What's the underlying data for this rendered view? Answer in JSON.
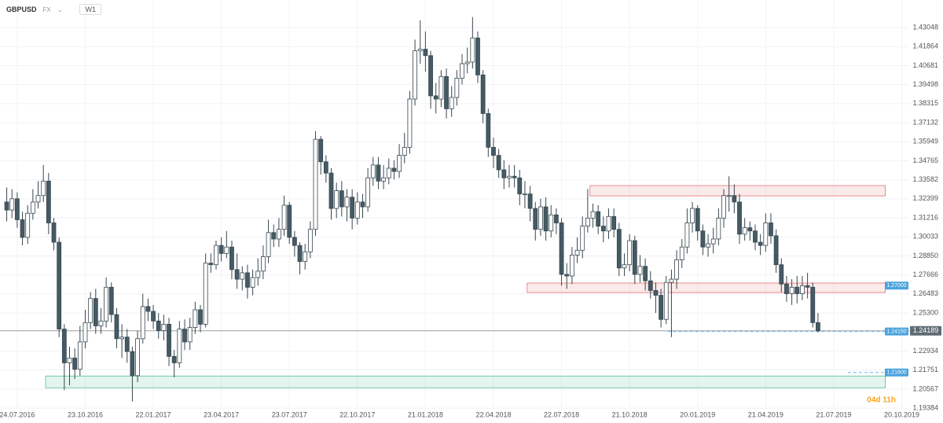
{
  "chart_data": {
    "type": "candlestick",
    "title": "GBPUSD",
    "market": "FX",
    "timeframe": "W1",
    "countdown": "04d 11h",
    "x": [
      "10.07.2016",
      "17.07.2016",
      "24.07.2016",
      "31.07.2016",
      "07.08.2016",
      "14.08.2016",
      "21.08.2016",
      "28.08.2016",
      "04.09.2016",
      "11.09.2016",
      "18.09.2016",
      "25.09.2016",
      "02.10.2016",
      "09.10.2016",
      "16.10.2016",
      "23.10.2016",
      "30.10.2016",
      "06.11.2016",
      "13.11.2016",
      "20.11.2016",
      "27.11.2016",
      "04.12.2016",
      "11.12.2016",
      "18.12.2016",
      "25.12.2016",
      "01.01.2017",
      "08.01.2017",
      "15.01.2017",
      "22.01.2017",
      "29.01.2017",
      "05.02.2017",
      "12.02.2017",
      "19.02.2017",
      "26.02.2017",
      "05.03.2017",
      "12.03.2017",
      "19.03.2017",
      "26.03.2017",
      "02.04.2017",
      "09.04.2017",
      "16.04.2017",
      "23.04.2017",
      "30.04.2017",
      "07.05.2017",
      "14.05.2017",
      "21.05.2017",
      "28.05.2017",
      "04.06.2017",
      "11.06.2017",
      "18.06.2017",
      "25.06.2017",
      "02.07.2017",
      "09.07.2017",
      "16.07.2017",
      "23.07.2017",
      "30.07.2017",
      "06.08.2017",
      "13.08.2017",
      "20.08.2017",
      "27.08.2017",
      "03.09.2017",
      "10.09.2017",
      "17.09.2017",
      "24.09.2017",
      "01.10.2017",
      "08.10.2017",
      "15.10.2017",
      "22.10.2017",
      "29.10.2017",
      "05.11.2017",
      "12.11.2017",
      "19.11.2017",
      "26.11.2017",
      "03.12.2017",
      "10.12.2017",
      "17.12.2017",
      "24.12.2017",
      "31.12.2017",
      "07.01.2018",
      "14.01.2018",
      "21.01.2018",
      "28.01.2018",
      "04.02.2018",
      "11.02.2018",
      "18.02.2018",
      "25.02.2018",
      "04.03.2018",
      "11.03.2018",
      "18.03.2018",
      "25.03.2018",
      "01.04.2018",
      "08.04.2018",
      "15.04.2018",
      "22.04.2018",
      "29.04.2018",
      "06.05.2018",
      "13.05.2018",
      "20.05.2018",
      "27.05.2018",
      "03.06.2018",
      "10.06.2018",
      "17.06.2018",
      "24.06.2018",
      "01.07.2018",
      "08.07.2018",
      "15.07.2018",
      "22.07.2018",
      "29.07.2018",
      "05.08.2018",
      "12.08.2018",
      "19.08.2018",
      "26.08.2018",
      "02.09.2018",
      "09.09.2018",
      "16.09.2018",
      "23.09.2018",
      "30.09.2018",
      "07.10.2018",
      "14.10.2018",
      "21.10.2018",
      "28.10.2018",
      "04.11.2018",
      "11.11.2018",
      "18.11.2018",
      "25.11.2018",
      "02.12.2018",
      "09.12.2018",
      "16.12.2018",
      "23.12.2018",
      "30.12.2018",
      "06.01.2019",
      "13.01.2019",
      "20.01.2019",
      "27.01.2019",
      "03.02.2019",
      "10.02.2019",
      "17.02.2019",
      "24.02.2019",
      "03.03.2019",
      "10.03.2019",
      "17.03.2019",
      "24.03.2019",
      "31.03.2019",
      "07.04.2019",
      "14.04.2019",
      "21.04.2019",
      "28.04.2019",
      "05.05.2019",
      "12.05.2019",
      "19.05.2019",
      "26.05.2019",
      "02.06.2019",
      "09.06.2019",
      "16.06.2019",
      "23.06.2019",
      "30.06.2019"
    ],
    "open": [
      1.322,
      1.317,
      1.324,
      1.311,
      1.3,
      1.315,
      1.322,
      1.326,
      1.335,
      1.309,
      1.297,
      1.243,
      1.222,
      1.225,
      1.218,
      1.235,
      1.247,
      1.262,
      1.245,
      1.248,
      1.269,
      1.252,
      1.237,
      1.238,
      1.229,
      1.214,
      1.237,
      1.257,
      1.254,
      1.248,
      1.242,
      1.246,
      1.226,
      1.222,
      1.243,
      1.235,
      1.244,
      1.255,
      1.246,
      1.284,
      1.283,
      1.295,
      1.29,
      1.294,
      1.28,
      1.274,
      1.278,
      1.269,
      1.275,
      1.279,
      1.288,
      1.303,
      1.299,
      1.305,
      1.32,
      1.3,
      1.295,
      1.285,
      1.291,
      1.305,
      1.361,
      1.347,
      1.34,
      1.318,
      1.329,
      1.319,
      1.325,
      1.312,
      1.322,
      1.319,
      1.337,
      1.345,
      1.335,
      1.337,
      1.343,
      1.341,
      1.351,
      1.356,
      1.386,
      1.416,
      1.417,
      1.413,
      1.388,
      1.386,
      1.4,
      1.38,
      1.387,
      1.399,
      1.408,
      1.409,
      1.424,
      1.401,
      1.377,
      1.356,
      1.351,
      1.342,
      1.337,
      1.338,
      1.337,
      1.327,
      1.327,
      1.318,
      1.305,
      1.319,
      1.304,
      1.314,
      1.309,
      1.277,
      1.276,
      1.289,
      1.292,
      1.307,
      1.312,
      1.316,
      1.307,
      1.304,
      1.313,
      1.305,
      1.281,
      1.283,
      1.298,
      1.277,
      1.282,
      1.273,
      1.267,
      1.264,
      1.249,
      1.272,
      1.274,
      1.286,
      1.294,
      1.309,
      1.318,
      1.304,
      1.294,
      1.296,
      1.299,
      1.312,
      1.326,
      1.326,
      1.322,
      1.302,
      1.306,
      1.304,
      1.297,
      1.295,
      1.309,
      1.301,
      1.283,
      1.271,
      1.265,
      1.269,
      1.265,
      1.27,
      1.269,
      1.247
    ],
    "high": [
      1.331,
      1.33,
      1.328,
      1.316,
      1.32,
      1.33,
      1.335,
      1.345,
      1.34,
      1.312,
      1.3,
      1.246,
      1.232,
      1.231,
      1.245,
      1.255,
      1.266,
      1.268,
      1.256,
      1.275,
      1.272,
      1.256,
      1.246,
      1.243,
      1.232,
      1.242,
      1.265,
      1.262,
      1.258,
      1.253,
      1.252,
      1.25,
      1.23,
      1.248,
      1.249,
      1.25,
      1.26,
      1.258,
      1.29,
      1.29,
      1.298,
      1.3,
      1.304,
      1.298,
      1.29,
      1.282,
      1.283,
      1.28,
      1.287,
      1.295,
      1.311,
      1.308,
      1.312,
      1.326,
      1.322,
      1.304,
      1.297,
      1.296,
      1.31,
      1.366,
      1.363,
      1.351,
      1.343,
      1.334,
      1.335,
      1.33,
      1.33,
      1.328,
      1.327,
      1.343,
      1.35,
      1.35,
      1.345,
      1.349,
      1.348,
      1.358,
      1.365,
      1.391,
      1.423,
      1.435,
      1.428,
      1.416,
      1.396,
      1.404,
      1.405,
      1.394,
      1.404,
      1.414,
      1.418,
      1.437,
      1.428,
      1.404,
      1.38,
      1.362,
      1.355,
      1.348,
      1.345,
      1.345,
      1.342,
      1.335,
      1.332,
      1.322,
      1.324,
      1.325,
      1.32,
      1.318,
      1.312,
      1.284,
      1.294,
      1.3,
      1.313,
      1.33,
      1.321,
      1.32,
      1.313,
      1.318,
      1.318,
      1.309,
      1.29,
      1.302,
      1.301,
      1.289,
      1.287,
      1.279,
      1.272,
      1.268,
      1.276,
      1.28,
      1.292,
      1.299,
      1.318,
      1.322,
      1.32,
      1.308,
      1.302,
      1.306,
      1.318,
      1.33,
      1.338,
      1.333,
      1.327,
      1.312,
      1.31,
      1.308,
      1.302,
      1.315,
      1.315,
      1.305,
      1.287,
      1.276,
      1.274,
      1.276,
      1.276,
      1.278,
      1.272,
      1.253
    ],
    "low": [
      1.31,
      1.312,
      1.306,
      1.295,
      1.296,
      1.311,
      1.318,
      1.322,
      1.302,
      1.292,
      1.238,
      1.205,
      1.208,
      1.212,
      1.214,
      1.231,
      1.243,
      1.24,
      1.24,
      1.244,
      1.247,
      1.231,
      1.225,
      1.222,
      1.198,
      1.21,
      1.234,
      1.248,
      1.243,
      1.237,
      1.236,
      1.22,
      1.213,
      1.219,
      1.23,
      1.23,
      1.24,
      1.241,
      1.244,
      1.278,
      1.28,
      1.285,
      1.287,
      1.274,
      1.268,
      1.267,
      1.262,
      1.264,
      1.27,
      1.274,
      1.284,
      1.294,
      1.294,
      1.301,
      1.296,
      1.288,
      1.277,
      1.28,
      1.287,
      1.301,
      1.339,
      1.334,
      1.311,
      1.312,
      1.313,
      1.31,
      1.305,
      1.308,
      1.312,
      1.316,
      1.332,
      1.33,
      1.33,
      1.333,
      1.336,
      1.337,
      1.346,
      1.352,
      1.382,
      1.408,
      1.403,
      1.38,
      1.377,
      1.381,
      1.374,
      1.375,
      1.382,
      1.395,
      1.402,
      1.405,
      1.396,
      1.371,
      1.35,
      1.343,
      1.337,
      1.33,
      1.331,
      1.331,
      1.32,
      1.318,
      1.31,
      1.298,
      1.301,
      1.298,
      1.3,
      1.302,
      1.27,
      1.268,
      1.271,
      1.284,
      1.287,
      1.303,
      1.306,
      1.302,
      1.297,
      1.299,
      1.3,
      1.276,
      1.276,
      1.279,
      1.271,
      1.272,
      1.267,
      1.262,
      1.253,
      1.244,
      1.246,
      1.238,
      1.268,
      1.281,
      1.29,
      1.303,
      1.298,
      1.289,
      1.288,
      1.29,
      1.295,
      1.306,
      1.316,
      1.315,
      1.296,
      1.298,
      1.298,
      1.292,
      1.289,
      1.291,
      1.296,
      1.278,
      1.266,
      1.26,
      1.258,
      1.259,
      1.261,
      1.262,
      1.244,
      1.241
    ],
    "close": [
      1.317,
      1.324,
      1.311,
      1.3,
      1.315,
      1.322,
      1.326,
      1.335,
      1.309,
      1.297,
      1.243,
      1.222,
      1.225,
      1.218,
      1.235,
      1.247,
      1.262,
      1.245,
      1.248,
      1.269,
      1.252,
      1.237,
      1.238,
      1.229,
      1.214,
      1.237,
      1.257,
      1.254,
      1.248,
      1.242,
      1.246,
      1.226,
      1.222,
      1.243,
      1.235,
      1.244,
      1.255,
      1.246,
      1.284,
      1.283,
      1.295,
      1.29,
      1.294,
      1.28,
      1.274,
      1.278,
      1.269,
      1.275,
      1.279,
      1.288,
      1.303,
      1.299,
      1.305,
      1.32,
      1.3,
      1.295,
      1.285,
      1.291,
      1.305,
      1.361,
      1.347,
      1.34,
      1.318,
      1.329,
      1.319,
      1.325,
      1.312,
      1.322,
      1.319,
      1.337,
      1.345,
      1.335,
      1.337,
      1.343,
      1.341,
      1.351,
      1.356,
      1.386,
      1.416,
      1.417,
      1.413,
      1.388,
      1.386,
      1.4,
      1.38,
      1.387,
      1.399,
      1.408,
      1.409,
      1.424,
      1.401,
      1.377,
      1.356,
      1.351,
      1.342,
      1.337,
      1.338,
      1.337,
      1.327,
      1.327,
      1.318,
      1.305,
      1.319,
      1.304,
      1.314,
      1.309,
      1.277,
      1.276,
      1.289,
      1.292,
      1.307,
      1.312,
      1.316,
      1.307,
      1.304,
      1.313,
      1.305,
      1.281,
      1.283,
      1.298,
      1.277,
      1.282,
      1.273,
      1.267,
      1.264,
      1.249,
      1.272,
      1.274,
      1.286,
      1.294,
      1.309,
      1.318,
      1.304,
      1.294,
      1.296,
      1.299,
      1.312,
      1.326,
      1.326,
      1.322,
      1.302,
      1.306,
      1.304,
      1.297,
      1.295,
      1.309,
      1.301,
      1.283,
      1.271,
      1.265,
      1.269,
      1.265,
      1.27,
      1.269,
      1.247,
      1.24189
    ],
    "up_color": "#ffffff",
    "down_color": "#455a64",
    "outline_color": "#37474f",
    "xlim": [
      "01.07.2016",
      "30.10.2019"
    ],
    "xticks": [
      "24.07.2016",
      "23.10.2016",
      "22.01.2017",
      "23.04.2017",
      "23.07.2017",
      "22.10.2017",
      "21.01.2018",
      "22.04.2018",
      "22.07.2018",
      "21.10.2018",
      "20.01.2019",
      "21.04.2019",
      "21.07.2019",
      "20.10.2019"
    ],
    "ylim": [
      1.1929,
      1.4476
    ],
    "yticks": [
      1.43048,
      1.41864,
      1.40681,
      1.39498,
      1.38315,
      1.37132,
      1.35949,
      1.34765,
      1.33582,
      1.32399,
      1.31216,
      1.30033,
      {
        "value": 1.2885,
        "label": "1.28850"
      },
      1.27666,
      1.26483,
      {
        "value": 1.253,
        "label": "1.25300"
      },
      1.22934,
      1.21751,
      1.20567,
      1.19384
    ],
    "grid": true,
    "zones": [
      {
        "from": 1.3258,
        "to": 1.3322,
        "start": "29.08.2018",
        "end": "28.09.2019",
        "color": "#e57373"
      },
      {
        "from": 1.2657,
        "to": 1.2716,
        "start": "06.06.2018",
        "end": "28.09.2019",
        "color": "#e57373"
      },
      {
        "from": 1.2065,
        "to": 1.2138,
        "start": "31.08.2016",
        "end": "28.09.2019",
        "color": "#4dbf95"
      }
    ],
    "levels": [
      {
        "value": 1.27,
        "label": "1.27000",
        "start": "28.09.2019"
      },
      {
        "value": 1.2415,
        "label": "1.24150",
        "start": "11.12.2018"
      },
      {
        "value": 1.216,
        "label": "1.21600",
        "start": "09.08.2019"
      }
    ],
    "last_price": 1.24189
  }
}
